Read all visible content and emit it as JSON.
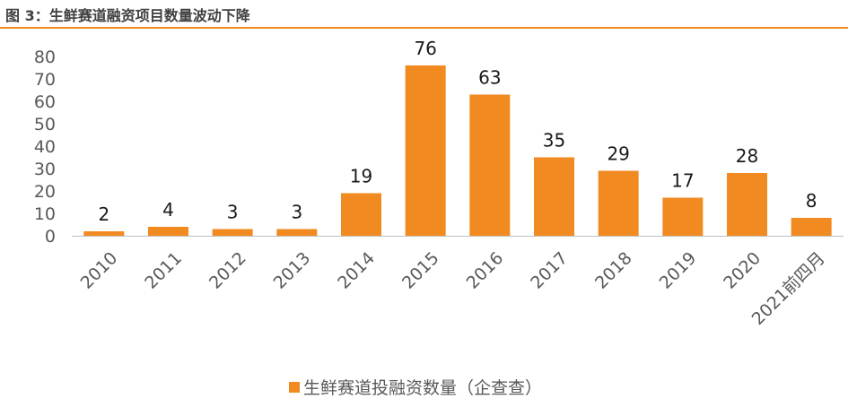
{
  "figure": {
    "title": "图 3：生鲜赛道融资项目数量波动下降"
  },
  "chart_data": {
    "type": "bar",
    "title": "图 3：生鲜赛道融资项目数量波动下降",
    "xlabel": "",
    "ylabel": "",
    "ylim": [
      0,
      80
    ],
    "yticks": [
      0,
      10,
      20,
      30,
      40,
      50,
      60,
      70,
      80
    ],
    "grid": false,
    "legend_position": "bottom",
    "categories": [
      "2010",
      "2011",
      "2012",
      "2013",
      "2014",
      "2015",
      "2016",
      "2017",
      "2018",
      "2019",
      "2020",
      "2021前四月"
    ],
    "series": [
      {
        "name": "生鲜赛道投融资数量（企查查）",
        "color": "#f28a22",
        "values": [
          2,
          4,
          3,
          3,
          19,
          76,
          63,
          35,
          29,
          17,
          28,
          8
        ]
      }
    ]
  }
}
